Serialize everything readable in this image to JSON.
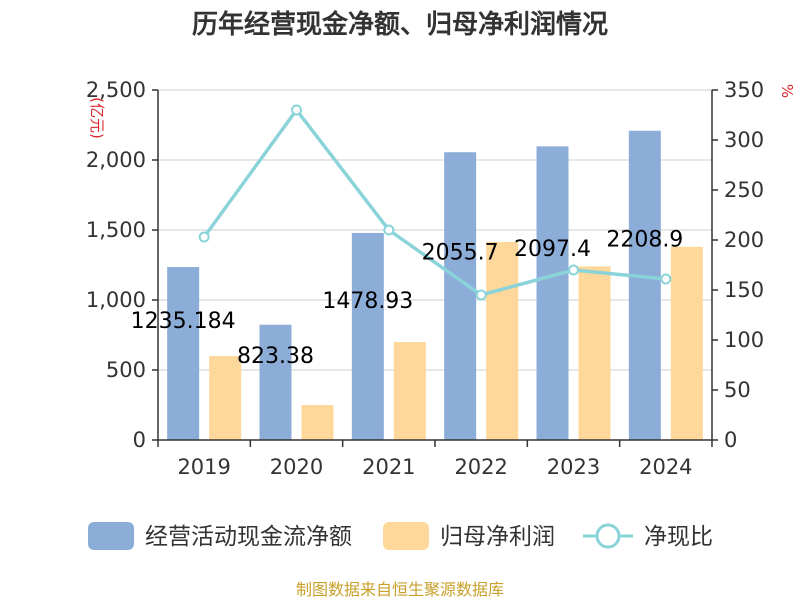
{
  "title": "历年经营现金净额、归母净利润情况",
  "source": "制图数据来自恒生聚源数据库",
  "colors": {
    "cash_flow": "#8dadd9",
    "net_profit": "#fdd89a",
    "ratio": "#8ad4d9"
  },
  "legend": {
    "cash_flow": "经营活动现金流净额",
    "net_profit": "归母净利润",
    "ratio": "净现比"
  },
  "chart_data": {
    "type": "bar",
    "title": "历年经营现金净额、归母净利润情况",
    "categories": [
      "2019",
      "2020",
      "2021",
      "2022",
      "2023",
      "2024"
    ],
    "y_left": {
      "label": "(亿元)",
      "lim": [
        0,
        2500
      ],
      "ticks": [
        0,
        500,
        1000,
        1500,
        2000,
        2500
      ],
      "tick_labels": [
        "0",
        "500",
        "1,000",
        "1,500",
        "2,000",
        "2,500"
      ]
    },
    "y_right": {
      "label": "%",
      "lim": [
        0,
        350
      ],
      "ticks": [
        0,
        50,
        100,
        150,
        200,
        250,
        300,
        350
      ],
      "tick_labels": [
        "0",
        "50",
        "100",
        "150",
        "200",
        "250",
        "300",
        "350"
      ]
    },
    "series": [
      {
        "name": "经营活动现金流净额",
        "type": "bar",
        "axis": "left",
        "values": [
          1235.184,
          823.38,
          1478.93,
          2055.7,
          2097.4,
          2208.9
        ],
        "labels": [
          "1235.184",
          "823.38",
          "1478.93",
          "2055.7",
          "2097.4",
          "2208.9"
        ]
      },
      {
        "name": "归母净利润",
        "type": "bar",
        "axis": "left",
        "values": [
          600,
          250,
          700,
          1415,
          1240,
          1380
        ]
      },
      {
        "name": "净现比",
        "type": "line",
        "axis": "right",
        "values": [
          203,
          330,
          210,
          145,
          170,
          161
        ]
      }
    ]
  }
}
